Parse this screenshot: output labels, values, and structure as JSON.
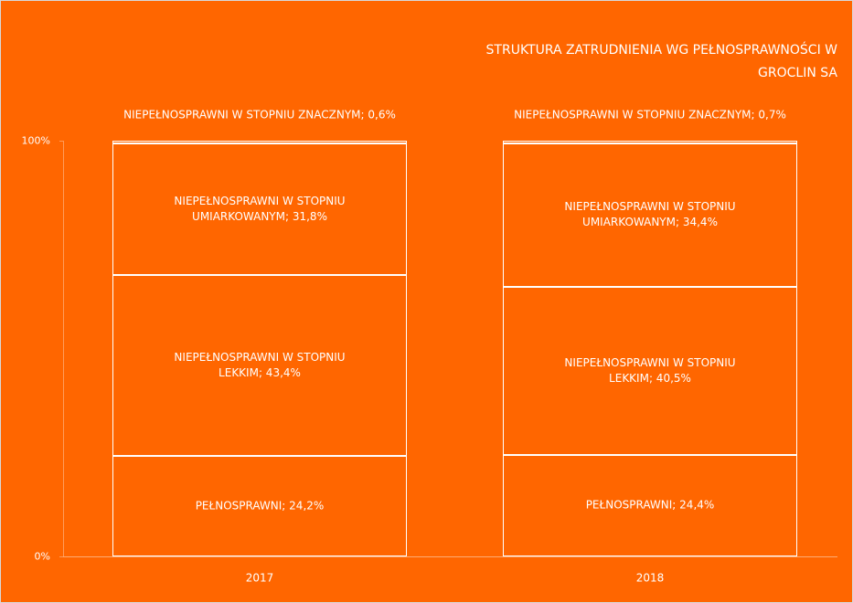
{
  "chart_data": {
    "type": "stacked_bar",
    "title": "STRUKTURA ZATRUDNIENIA WG PEŁNOSPRAWNOŚCI W GROCLIN SA",
    "categories": [
      "2017",
      "2018"
    ],
    "series": [
      {
        "color": "#ff6600",
        "values": [
          24.2,
          24.4
        ],
        "value_labels": [
          "PEŁNOSPRAWNI; 24,2%",
          "PEŁNOSPRAWNI; 24,4%"
        ]
      },
      {
        "color": "#ff6600",
        "values": [
          43.4,
          40.5
        ],
        "value_labels": [
          "NIEPEŁNOSPRAWNI W STOPNIU LEKKIM; 43,4%",
          "NIEPEŁNOSPRAWNI W STOPNIU LEKKIM; 40,5%"
        ]
      },
      {
        "color": "#ff6600",
        "values": [
          31.8,
          34.4
        ],
        "value_labels": [
          "NIEPEŁNOSPRAWNI W STOPNIU UMIARKOWANYM; 31,8%",
          "NIEPEŁNOSPRAWNI W STOPNIU UMIARKOWANYM; 34,4%"
        ]
      },
      {
        "color": "#ff6600",
        "values": [
          0.6,
          0.7
        ],
        "value_labels": [
          "NIEPEŁNOSPRAWNI W STOPNIU ZNACZNYM; 0,6%",
          "NIEPEŁNOSPRAWNI W STOPNIU ZNACZNYM; 0,7%"
        ]
      }
    ],
    "ylim": [
      0,
      100
    ],
    "yticks": [
      {
        "value": 0,
        "label": "0%"
      },
      {
        "value": 100,
        "label": "100%"
      }
    ]
  }
}
